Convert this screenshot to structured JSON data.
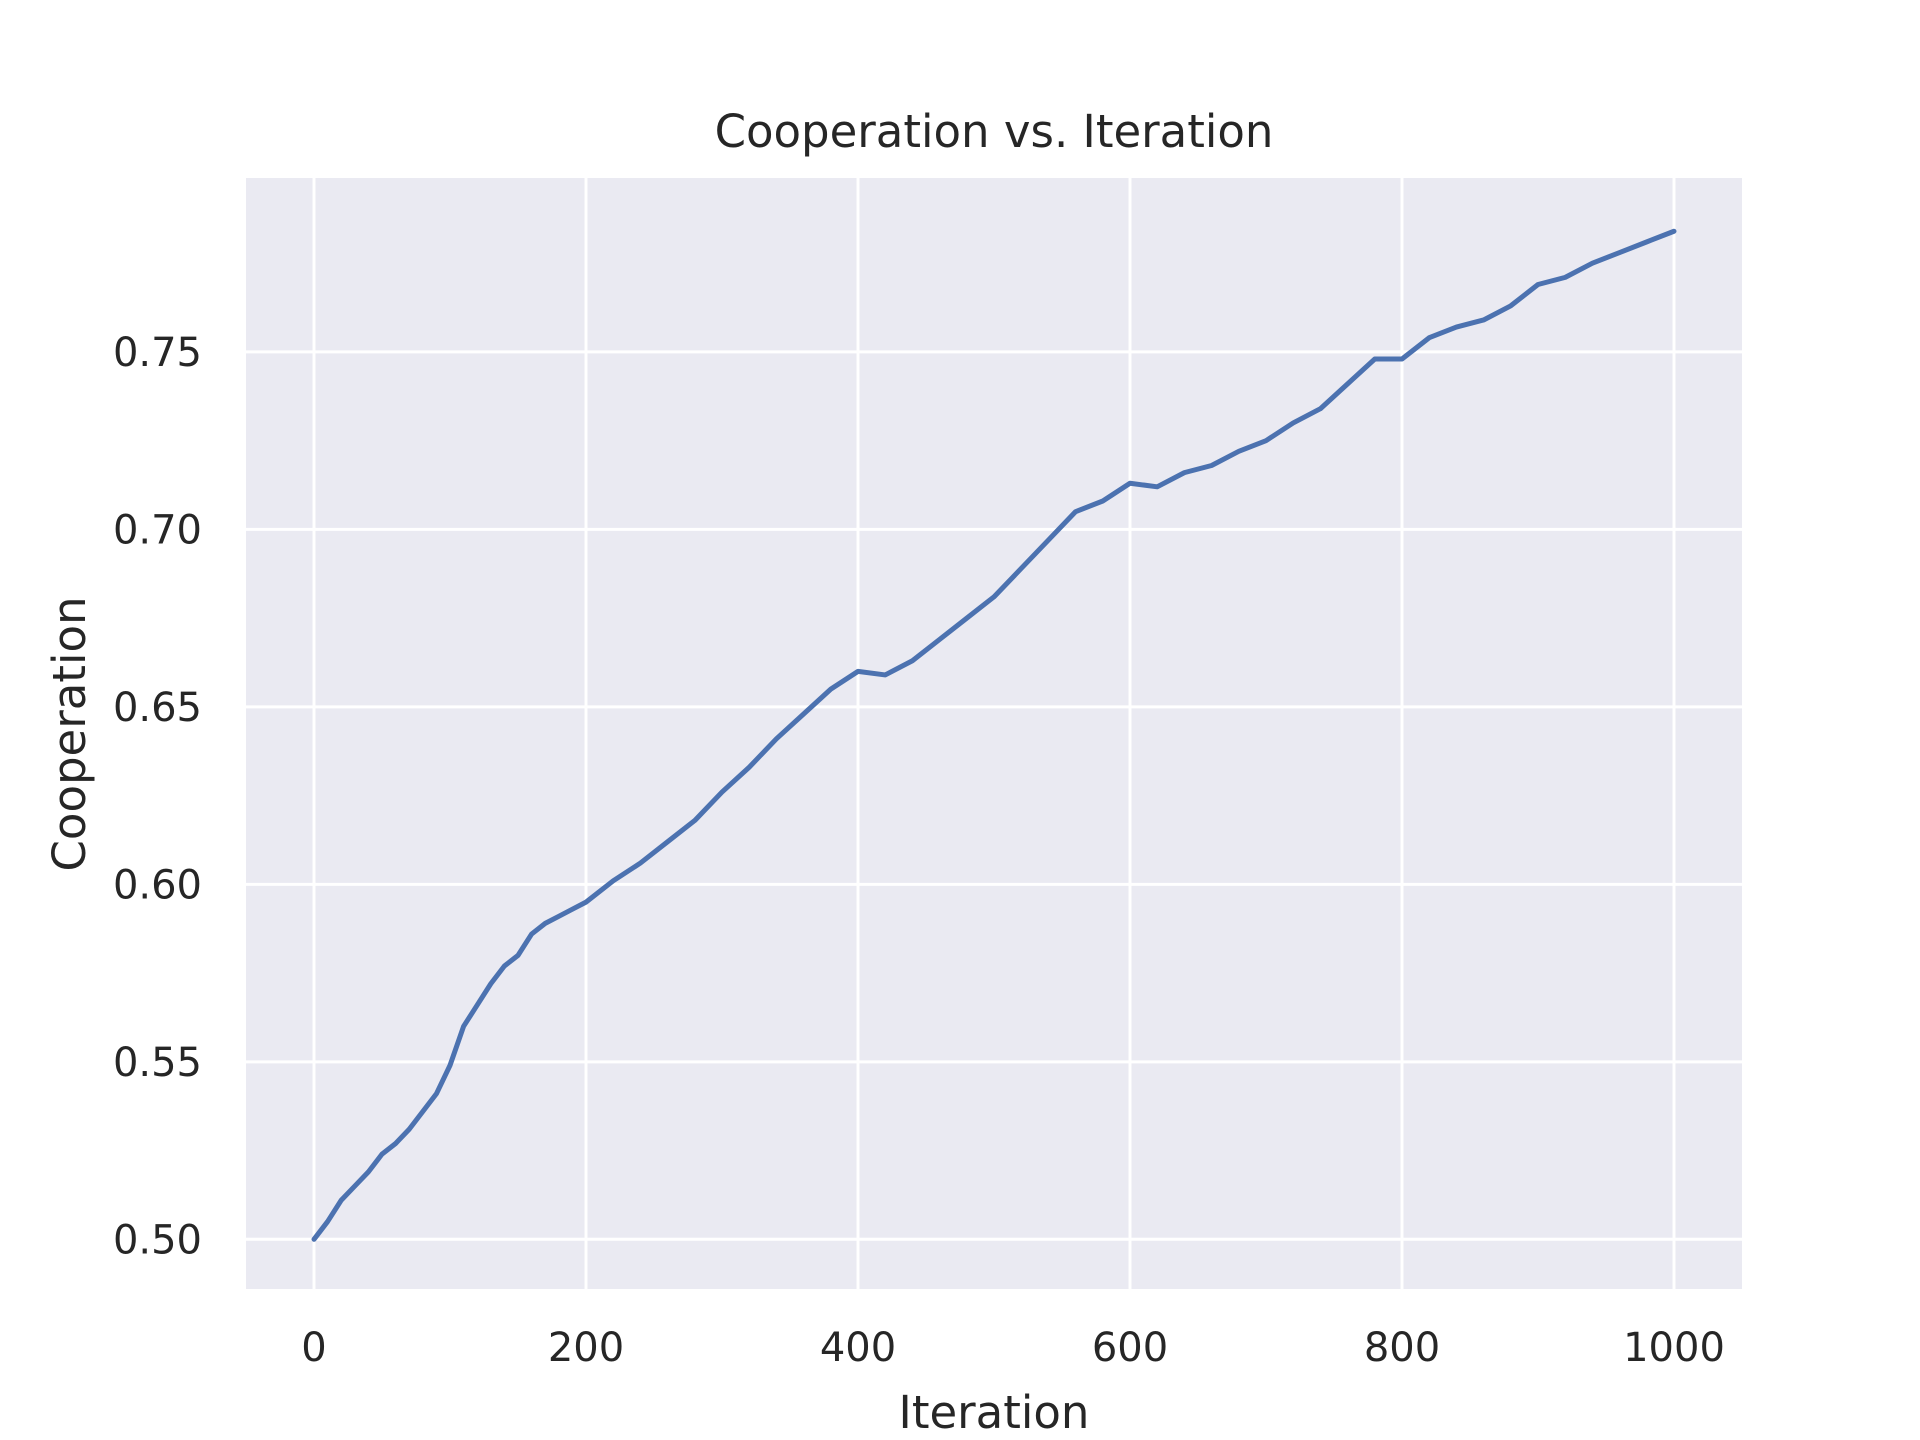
{
  "chart_data": {
    "type": "line",
    "title": "Cooperation vs. Iteration",
    "xlabel": "Iteration",
    "ylabel": "Cooperation",
    "xlim": [
      -50,
      1050
    ],
    "ylim": [
      0.486,
      0.799
    ],
    "xticks": [
      0,
      200,
      400,
      600,
      800,
      1000
    ],
    "xtick_labels": [
      "0",
      "200",
      "400",
      "600",
      "800",
      "1000"
    ],
    "yticks": [
      0.5,
      0.55,
      0.6,
      0.65,
      0.7,
      0.75
    ],
    "ytick_labels": [
      "0.50",
      "0.55",
      "0.60",
      "0.65",
      "0.70",
      "0.75"
    ],
    "grid": true,
    "colors": {
      "background": "#eaeaf2",
      "grid": "#ffffff",
      "line": "#4c72b0"
    },
    "series": [
      {
        "x": [
          0,
          10,
          20,
          30,
          40,
          50,
          60,
          70,
          80,
          90,
          100,
          110,
          120,
          130,
          140,
          150,
          160,
          170,
          180,
          190,
          200,
          220,
          240,
          260,
          280,
          300,
          320,
          340,
          360,
          380,
          400,
          420,
          440,
          460,
          480,
          500,
          520,
          540,
          560,
          580,
          600,
          620,
          640,
          660,
          680,
          700,
          720,
          740,
          760,
          780,
          800,
          820,
          840,
          860,
          880,
          900,
          920,
          940,
          960,
          980,
          1000
        ],
        "y": [
          0.5,
          0.505,
          0.511,
          0.515,
          0.519,
          0.524,
          0.527,
          0.531,
          0.536,
          0.541,
          0.549,
          0.56,
          0.566,
          0.572,
          0.577,
          0.58,
          0.586,
          0.589,
          0.591,
          0.593,
          0.595,
          0.601,
          0.606,
          0.612,
          0.618,
          0.626,
          0.633,
          0.641,
          0.648,
          0.655,
          0.66,
          0.659,
          0.663,
          0.669,
          0.675,
          0.681,
          0.689,
          0.697,
          0.705,
          0.708,
          0.713,
          0.712,
          0.716,
          0.718,
          0.722,
          0.725,
          0.73,
          0.734,
          0.741,
          0.748,
          0.748,
          0.754,
          0.757,
          0.759,
          0.763,
          0.769,
          0.771,
          0.775,
          0.778,
          0.781,
          0.784
        ]
      }
    ]
  }
}
